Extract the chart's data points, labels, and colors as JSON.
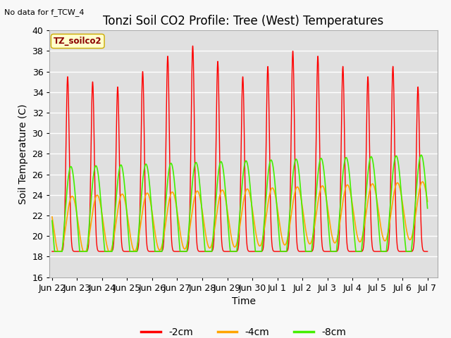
{
  "title": "Tonzi Soil CO2 Profile: Tree (West) Temperatures",
  "subtitle": "No data for f_TCW_4",
  "ylabel": "Soil Temperature (C)",
  "xlabel": "Time",
  "ylim": [
    16,
    40
  ],
  "background_color": "#e0e0e0",
  "fig_color": "#f8f8f8",
  "tick_labels": [
    "Jun 22",
    "Jun 23",
    "Jun 24",
    "Jun 25",
    "Jun 26",
    "Jun 27",
    "Jun 28",
    "Jun 29",
    "Jun 30",
    "Jul 1",
    "Jul 2",
    "Jul 3",
    "Jul 4",
    "Jul 5",
    "Jul 6",
    "Jul 7"
  ],
  "legend_label": "TZ_soilco2",
  "color_2cm": "#ff0000",
  "color_4cm": "#ffa500",
  "color_8cm": "#44ee00",
  "line_labels": [
    "-2cm",
    "-4cm",
    "-8cm"
  ],
  "title_fontsize": 12,
  "axis_fontsize": 10,
  "tick_fontsize": 9,
  "n_days": 15,
  "n_points": 3000
}
